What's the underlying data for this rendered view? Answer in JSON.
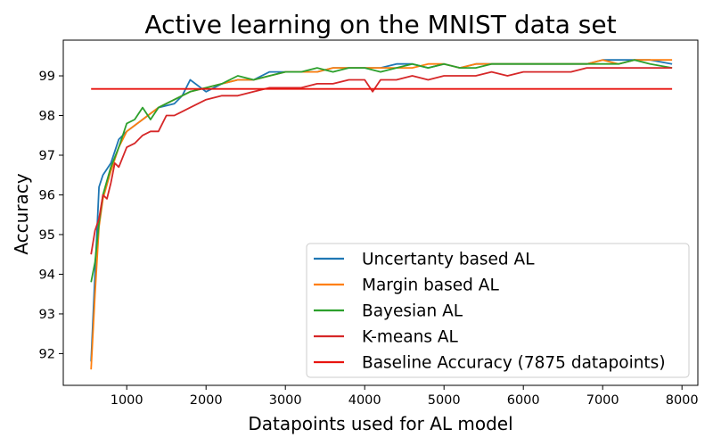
{
  "chart_data": {
    "type": "line",
    "title": "Active learning on the MNIST data set",
    "xlabel": "Datapoints used for AL model",
    "ylabel": "Accuracy",
    "xlim": [
      200,
      8200
    ],
    "ylim": [
      91.2,
      99.9
    ],
    "xticks": [
      1000,
      2000,
      3000,
      4000,
      5000,
      6000,
      7000,
      8000
    ],
    "yticks": [
      92,
      93,
      94,
      95,
      96,
      97,
      98,
      99
    ],
    "grid": false,
    "legend_position": "lower-right",
    "series": [
      {
        "name": "Uncertanty based AL",
        "color": "#1f77b4",
        "x": [
          550,
          600,
          650,
          700,
          800,
          900,
          1000,
          1200,
          1400,
          1600,
          1700,
          1800,
          2000,
          2200,
          2400,
          2600,
          2800,
          3000,
          3200,
          3400,
          3600,
          3800,
          4000,
          4200,
          4400,
          4600,
          4800,
          5000,
          5200,
          5400,
          5600,
          5800,
          6000,
          6200,
          6400,
          6600,
          6800,
          7000,
          7200,
          7400,
          7600,
          7875
        ],
        "y": [
          91.8,
          94.0,
          96.2,
          96.5,
          96.8,
          97.4,
          97.6,
          97.9,
          98.2,
          98.3,
          98.5,
          98.9,
          98.6,
          98.8,
          98.9,
          98.9,
          99.1,
          99.1,
          99.1,
          99.1,
          99.2,
          99.2,
          99.2,
          99.2,
          99.3,
          99.3,
          99.2,
          99.3,
          99.2,
          99.3,
          99.3,
          99.3,
          99.3,
          99.3,
          99.3,
          99.3,
          99.3,
          99.4,
          99.4,
          99.4,
          99.4,
          99.3
        ]
      },
      {
        "name": "Margin based AL",
        "color": "#ff7f0e",
        "x": [
          550,
          600,
          650,
          700,
          800,
          900,
          1000,
          1200,
          1400,
          1600,
          1800,
          2000,
          2200,
          2400,
          2600,
          2800,
          3000,
          3200,
          3400,
          3600,
          3800,
          4000,
          4200,
          4400,
          4600,
          4800,
          5000,
          5200,
          5400,
          5600,
          5800,
          6000,
          6200,
          6400,
          6600,
          6800,
          7000,
          7200,
          7400,
          7600,
          7875
        ],
        "y": [
          91.6,
          93.5,
          95.2,
          95.9,
          96.6,
          97.2,
          97.6,
          97.9,
          98.2,
          98.4,
          98.6,
          98.7,
          98.8,
          98.9,
          98.9,
          99.0,
          99.1,
          99.1,
          99.1,
          99.2,
          99.2,
          99.2,
          99.2,
          99.2,
          99.2,
          99.3,
          99.3,
          99.2,
          99.3,
          99.3,
          99.3,
          99.3,
          99.3,
          99.3,
          99.3,
          99.3,
          99.4,
          99.3,
          99.4,
          99.4,
          99.4
        ]
      },
      {
        "name": "Bayesian AL",
        "color": "#2ca02c",
        "x": [
          550,
          600,
          650,
          700,
          800,
          900,
          1000,
          1100,
          1200,
          1300,
          1400,
          1600,
          1800,
          2000,
          2200,
          2400,
          2600,
          2800,
          3000,
          3200,
          3400,
          3600,
          3800,
          4000,
          4200,
          4400,
          4600,
          4800,
          5000,
          5200,
          5400,
          5600,
          5800,
          6000,
          6200,
          6400,
          6600,
          6800,
          7000,
          7200,
          7400,
          7600,
          7875
        ],
        "y": [
          93.8,
          94.3,
          95.3,
          96.0,
          96.7,
          97.2,
          97.8,
          97.9,
          98.2,
          97.9,
          98.2,
          98.4,
          98.6,
          98.7,
          98.8,
          99.0,
          98.9,
          99.0,
          99.1,
          99.1,
          99.2,
          99.1,
          99.2,
          99.2,
          99.1,
          99.2,
          99.3,
          99.2,
          99.3,
          99.2,
          99.2,
          99.3,
          99.3,
          99.3,
          99.3,
          99.3,
          99.3,
          99.3,
          99.3,
          99.3,
          99.4,
          99.3,
          99.2
        ]
      },
      {
        "name": "K-means AL",
        "color": "#d62728",
        "x": [
          550,
          600,
          650,
          700,
          750,
          800,
          850,
          900,
          1000,
          1100,
          1200,
          1300,
          1400,
          1500,
          1600,
          1700,
          1800,
          2000,
          2200,
          2400,
          2600,
          2800,
          3000,
          3200,
          3400,
          3600,
          3800,
          4000,
          4100,
          4200,
          4400,
          4600,
          4800,
          5000,
          5200,
          5400,
          5600,
          5800,
          6000,
          6200,
          6400,
          6600,
          6800,
          7000,
          7200,
          7400,
          7600,
          7875
        ],
        "y": [
          94.5,
          95.1,
          95.4,
          96.0,
          95.9,
          96.3,
          96.8,
          96.7,
          97.2,
          97.3,
          97.5,
          97.6,
          97.6,
          98.0,
          98.0,
          98.1,
          98.2,
          98.4,
          98.5,
          98.5,
          98.6,
          98.7,
          98.7,
          98.7,
          98.8,
          98.8,
          98.9,
          98.9,
          98.6,
          98.9,
          98.9,
          99.0,
          98.9,
          99.0,
          99.0,
          99.0,
          99.1,
          99.0,
          99.1,
          99.1,
          99.1,
          99.1,
          99.2,
          99.2,
          99.2,
          99.2,
          99.2,
          99.2
        ]
      },
      {
        "name": "Baseline Accuracy (7875 datapoints)",
        "color": "#e8140f",
        "x": [
          550,
          7875
        ],
        "y": [
          98.67,
          98.67
        ]
      }
    ]
  }
}
